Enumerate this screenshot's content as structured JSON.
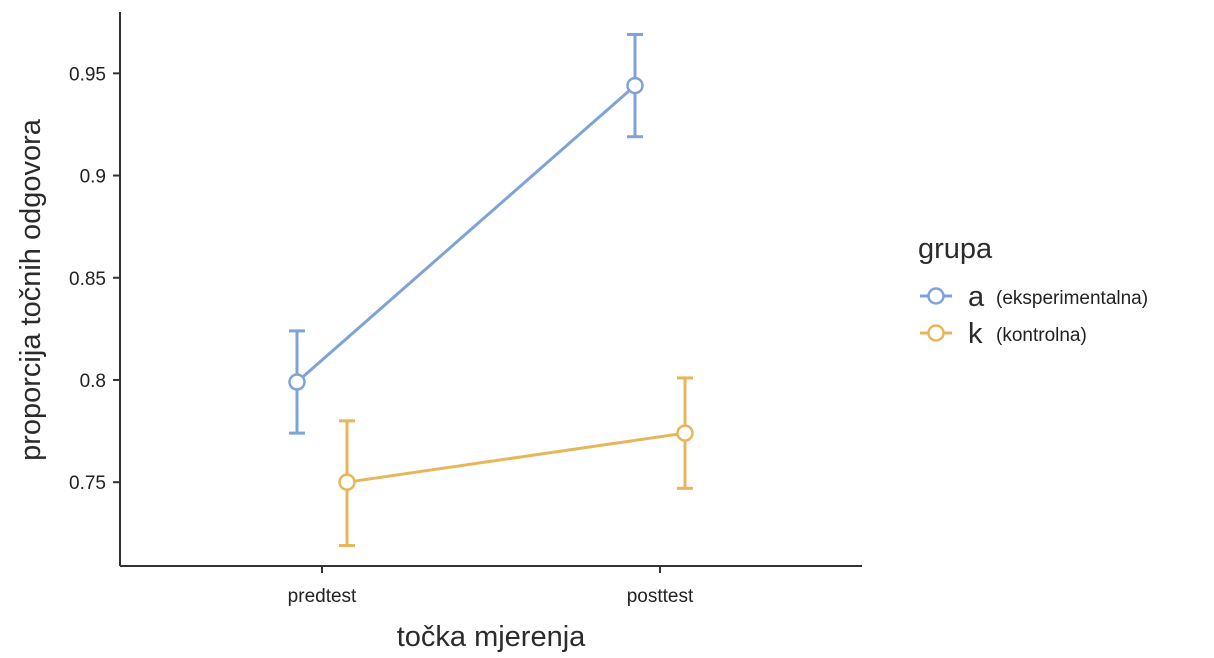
{
  "chart_data": {
    "type": "line",
    "x_categories": [
      "predtest",
      "posttest"
    ],
    "xlabel": "točka mjerenja",
    "ylabel": "proporcija točnih odgovora",
    "y_ticks": [
      "0.75",
      "0.8",
      "0.85",
      "0.9",
      "0.95"
    ],
    "y_tick_values": [
      0.75,
      0.8,
      0.85,
      0.9,
      0.95
    ],
    "ylim": [
      0.709,
      0.98
    ],
    "grid": false,
    "legend": {
      "title": "grupa",
      "placement": "right",
      "items": [
        {
          "key": "a",
          "label": "(eksperimentalna)"
        },
        {
          "key": "k",
          "label": "(kontrolna)"
        }
      ]
    },
    "series": [
      {
        "name": "a (eksperimentalna)",
        "color": "#7fa3d9",
        "values": [
          0.799,
          0.944
        ],
        "error_low": [
          0.774,
          0.919
        ],
        "error_high": [
          0.824,
          0.969
        ]
      },
      {
        "name": "k (kontrolna)",
        "color": "#e8b65a",
        "values": [
          0.75,
          0.774
        ],
        "error_low": [
          0.719,
          0.747
        ],
        "error_high": [
          0.78,
          0.801
        ]
      }
    ]
  }
}
